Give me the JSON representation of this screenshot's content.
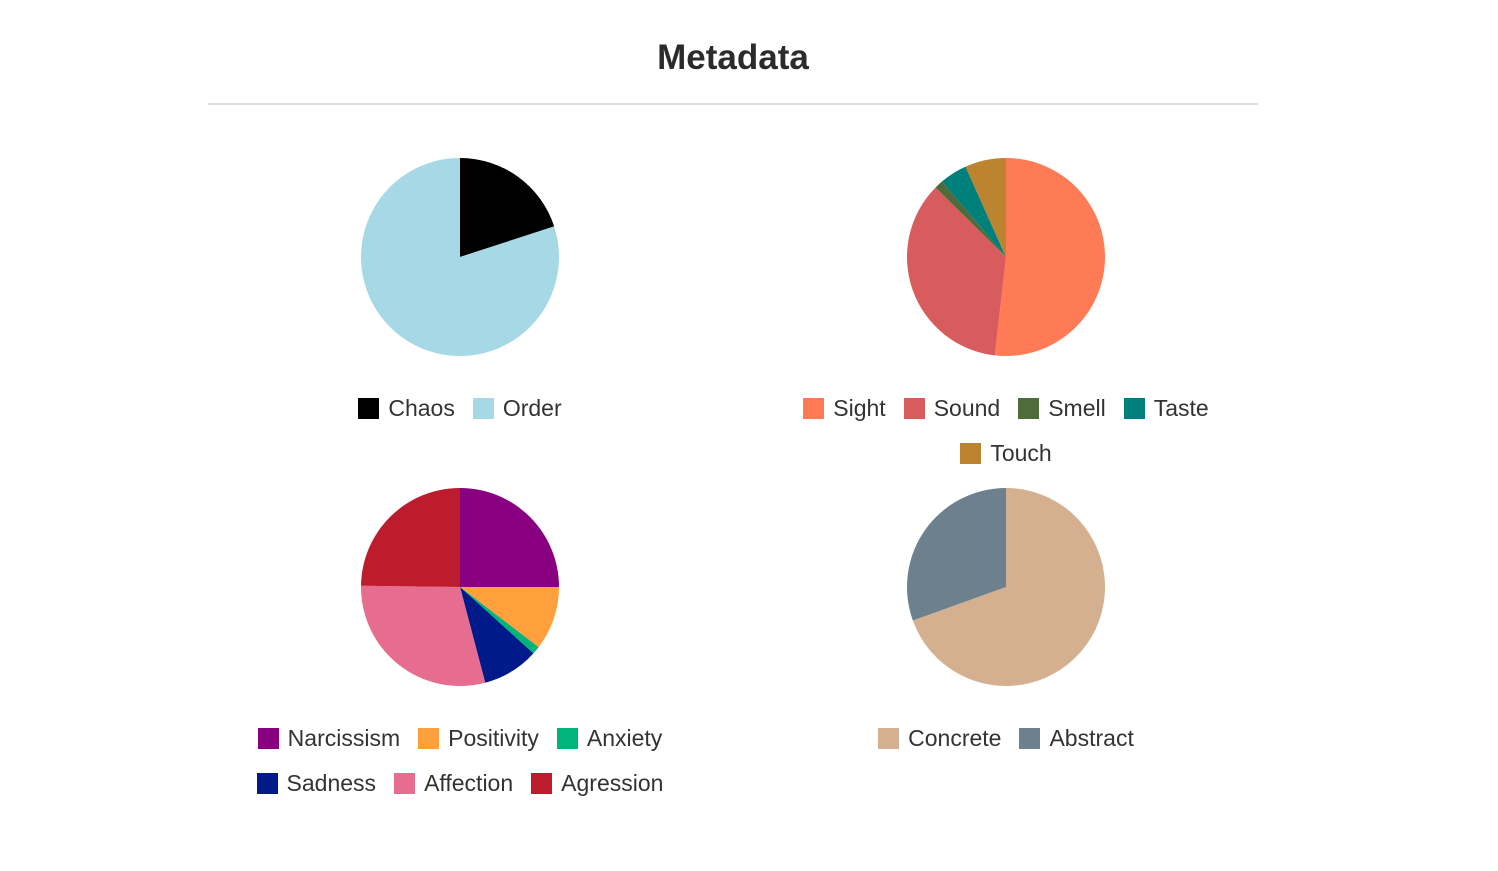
{
  "page": {
    "title": "Metadata"
  },
  "chart_data": [
    {
      "type": "pie",
      "categories": [
        "Chaos",
        "Order"
      ],
      "values": [
        20,
        80
      ],
      "colors": [
        "#000000",
        "#a6d9e5"
      ],
      "legend_position": "bottom"
    },
    {
      "type": "pie",
      "categories": [
        "Sight",
        "Sound",
        "Smell",
        "Taste",
        "Touch"
      ],
      "values": [
        51.8,
        35.6,
        1.4,
        4.5,
        6.7
      ],
      "colors": [
        "#ff7b56",
        "#d85b5d",
        "#4f6b39",
        "#00807a",
        "#bd8430"
      ],
      "legend_position": "bottom"
    },
    {
      "type": "pie",
      "categories": [
        "Narcissism",
        "Positivity",
        "Anxiety",
        "Sadness",
        "Affection",
        "Agression"
      ],
      "values": [
        25,
        10.4,
        1.3,
        9.2,
        29.3,
        24.8
      ],
      "colors": [
        "#880080",
        "#ffa03c",
        "#00b47a",
        "#001a8a",
        "#e66d90",
        "#bc1c2c"
      ],
      "legend_position": "bottom"
    },
    {
      "type": "pie",
      "categories": [
        "Concrete",
        "Abstract"
      ],
      "values": [
        69.5,
        30.5
      ],
      "colors": [
        "#d5b090",
        "#6d808d"
      ],
      "legend_position": "bottom"
    }
  ]
}
